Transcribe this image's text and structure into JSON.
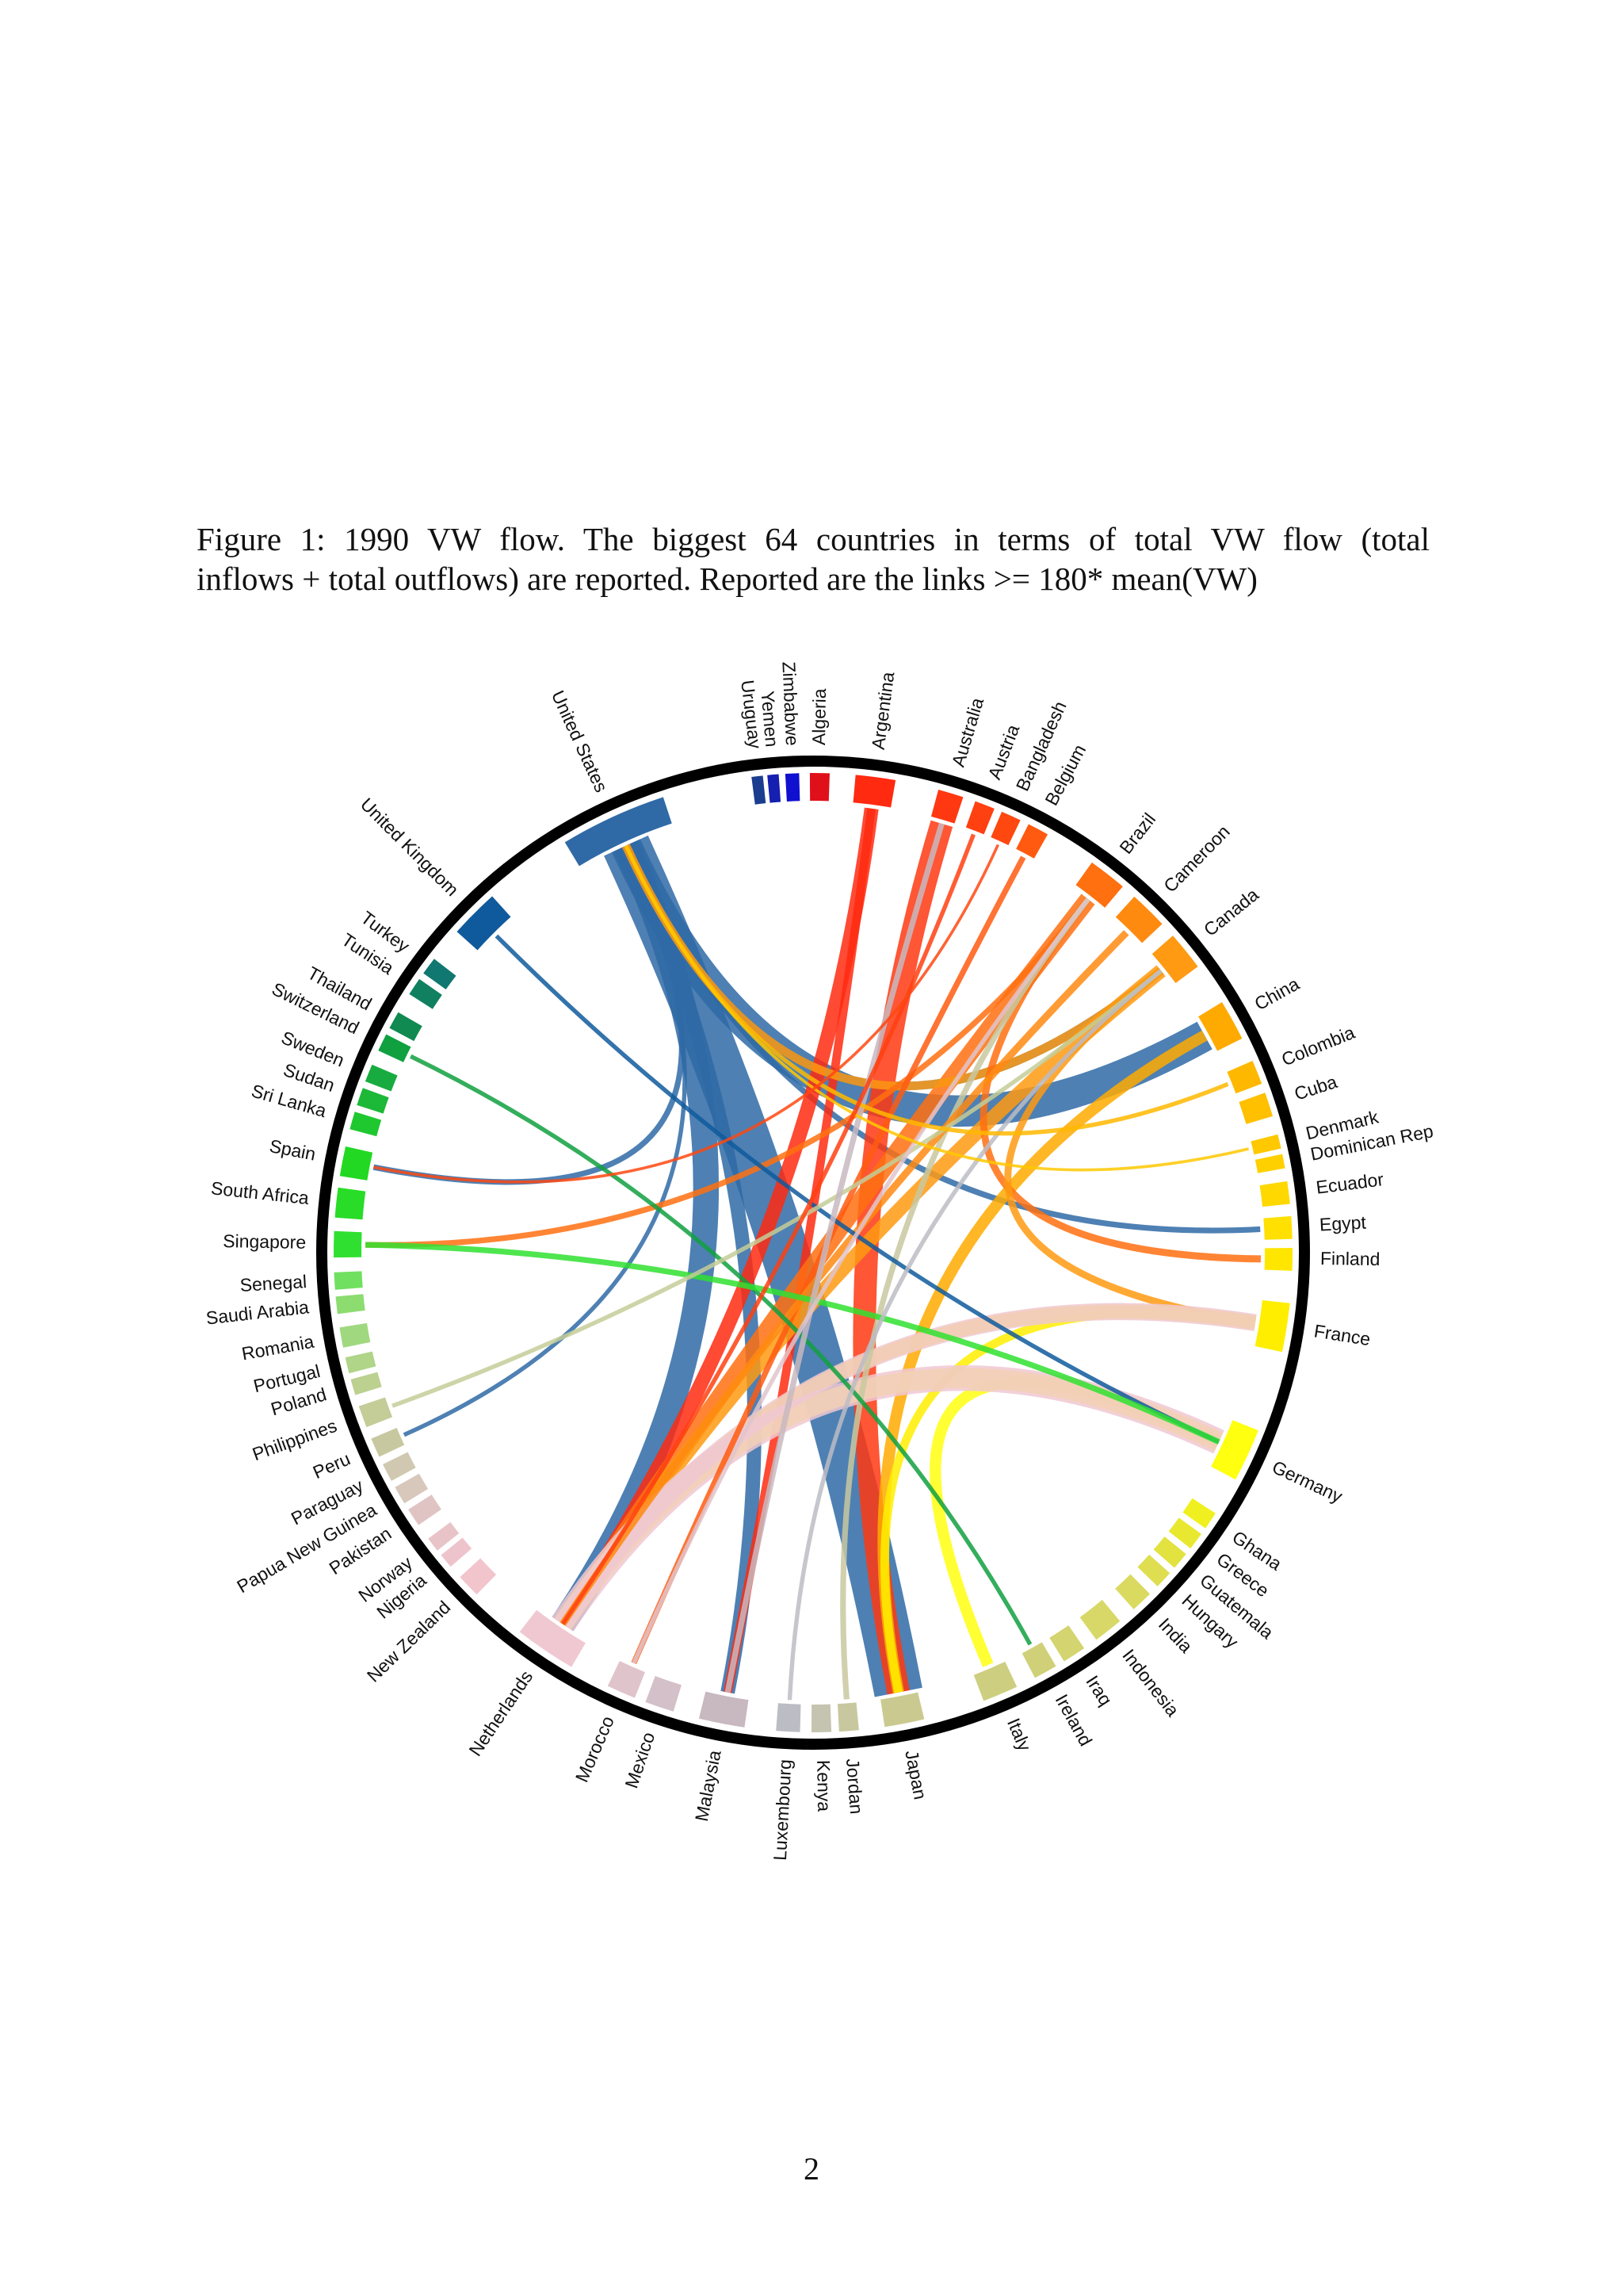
{
  "caption": {
    "line1": "Figure 1:  1990 VW flow.  The biggest 64 countries in terms of total VW flow (total",
    "line2": "inflows + total outflows) are reported. Reported are the links >= 180* mean(VW)"
  },
  "page_number": "2",
  "nodes": [
    {
      "label": "United States",
      "color": "#2f6aa6"
    },
    {
      "label": "Uruguay",
      "color": "#1a3d8f"
    },
    {
      "label": "Yemen",
      "color": "#1520b0"
    },
    {
      "label": "Zimbabwe",
      "color": "#1010d0"
    },
    {
      "label": "Algeria",
      "color": "#e0101a"
    },
    {
      "label": "Argentina",
      "color": "#ff2a10"
    },
    {
      "label": "Australia",
      "color": "#ff3812"
    },
    {
      "label": "Austria",
      "color": "#ff4010"
    },
    {
      "label": "Bangladesh",
      "color": "#ff4810"
    },
    {
      "label": "Belgium",
      "color": "#ff5a10"
    },
    {
      "label": "Brazil",
      "color": "#ff7010"
    },
    {
      "label": "Cameroon",
      "color": "#ff8a10"
    },
    {
      "label": "Canada",
      "color": "#ff9a12"
    },
    {
      "label": "China",
      "color": "#ffaa00"
    },
    {
      "label": "Colombia",
      "color": "#ffb800"
    },
    {
      "label": "Cuba",
      "color": "#ffc000"
    },
    {
      "label": "Denmark",
      "color": "#ffc800"
    },
    {
      "label": "Dominican Rep",
      "color": "#ffd000"
    },
    {
      "label": "Ecuador",
      "color": "#ffd800"
    },
    {
      "label": "Egypt",
      "color": "#ffe000"
    },
    {
      "label": "Finland",
      "color": "#ffe600"
    },
    {
      "label": "France",
      "color": "#ffee00"
    },
    {
      "label": "Germany",
      "color": "#ffff10"
    },
    {
      "label": "Ghana",
      "color": "#f0f020"
    },
    {
      "label": "Greece",
      "color": "#e8e830"
    },
    {
      "label": "Guatemala",
      "color": "#e2e240"
    },
    {
      "label": "Hungary",
      "color": "#dede50"
    },
    {
      "label": "India",
      "color": "#dada60"
    },
    {
      "label": "Indonesia",
      "color": "#d8d868"
    },
    {
      "label": "Iraq",
      "color": "#d4d470"
    },
    {
      "label": "Ireland",
      "color": "#d0d078"
    },
    {
      "label": "Italy",
      "color": "#cece80"
    },
    {
      "label": "Japan",
      "color": "#caca90"
    },
    {
      "label": "Jordan",
      "color": "#c8c8a0"
    },
    {
      "label": "Kenya",
      "color": "#c4c4b0"
    },
    {
      "label": "Luxembourg",
      "color": "#bcbcc4"
    },
    {
      "label": "Malaysia",
      "color": "#c8b8c0"
    },
    {
      "label": "Mexico",
      "color": "#d4c0c8"
    },
    {
      "label": "Morocco",
      "color": "#e0c4cc"
    },
    {
      "label": "Netherlands",
      "color": "#f0c8d2"
    },
    {
      "label": "New Zealand",
      "color": "#f2c4cc"
    },
    {
      "label": "Nigeria",
      "color": "#eec4cc"
    },
    {
      "label": "Norway",
      "color": "#e8c4c8"
    },
    {
      "label": "Pakistan",
      "color": "#e0c4c4"
    },
    {
      "label": "Papua New Guinea",
      "color": "#d8c8bc"
    },
    {
      "label": "Paraguay",
      "color": "#d0c8b0"
    },
    {
      "label": "Peru",
      "color": "#c8c8a0"
    },
    {
      "label": "Philippines",
      "color": "#c4cc98"
    },
    {
      "label": "Poland",
      "color": "#bcd090"
    },
    {
      "label": "Portugal",
      "color": "#b0d488"
    },
    {
      "label": "Romania",
      "color": "#a0d880"
    },
    {
      "label": "Saudi Arabia",
      "color": "#8cdc70"
    },
    {
      "label": "Senegal",
      "color": "#70e060"
    },
    {
      "label": "Singapore",
      "color": "#30e030"
    },
    {
      "label": "South Africa",
      "color": "#28dc28"
    },
    {
      "label": "Spain",
      "color": "#22d822"
    },
    {
      "label": "Sri Lanka",
      "color": "#20c830"
    },
    {
      "label": "Sudan",
      "color": "#1cb838"
    },
    {
      "label": "Sweden",
      "color": "#18ac40"
    },
    {
      "label": "Switzerland",
      "color": "#10a040"
    },
    {
      "label": "Thailand",
      "color": "#108a50"
    },
    {
      "label": "Tunisia",
      "color": "#108060"
    },
    {
      "label": "Turkey",
      "color": "#107870"
    },
    {
      "label": "United Kingdom",
      "color": "#0f5a9c"
    }
  ]
}
